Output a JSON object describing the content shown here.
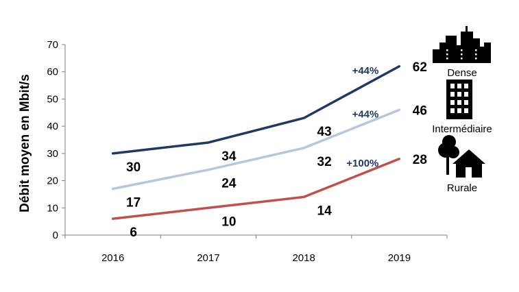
{
  "chart_data": {
    "type": "line",
    "ylabel": "Débit moyen en Mbit/s",
    "xlabel": "",
    "x": [
      "2016",
      "2017",
      "2018",
      "2019"
    ],
    "ylim": [
      0,
      70
    ],
    "yticks": [
      0,
      10,
      20,
      30,
      40,
      50,
      60,
      70
    ],
    "grid": false,
    "series": [
      {
        "name": "Dense",
        "values": [
          30,
          34,
          43,
          62
        ],
        "color": "#1f3864",
        "growth": "+44%",
        "icon": "city-skyline-icon"
      },
      {
        "name": "Intermédiaire",
        "values": [
          17,
          24,
          32,
          46
        ],
        "color": "#b4c7dc",
        "growth": "+44%",
        "icon": "building-icon"
      },
      {
        "name": "Rurale",
        "values": [
          6,
          10,
          14,
          28
        ],
        "color": "#c0504d",
        "growth": "+100%",
        "icon": "house-tree-icon"
      }
    ]
  }
}
